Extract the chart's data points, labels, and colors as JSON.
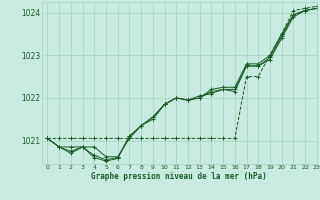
{
  "title": "Graphe pression niveau de la mer (hPa)",
  "background_color": "#c8eae0",
  "grid_color": "#a8cfc0",
  "line_color": "#1a5c28",
  "xlim": [
    -0.5,
    23
  ],
  "ylim": [
    1020.45,
    1024.25
  ],
  "yticks": [
    1021,
    1022,
    1023,
    1024
  ],
  "xticks": [
    0,
    1,
    2,
    3,
    4,
    5,
    6,
    7,
    8,
    9,
    10,
    11,
    12,
    13,
    14,
    15,
    16,
    17,
    18,
    19,
    20,
    21,
    22,
    23
  ],
  "series": [
    {
      "data": [
        1021.05,
        1021.05,
        1021.05,
        1021.05,
        1021.05,
        1021.05,
        1021.05,
        1021.05,
        1021.05,
        1021.05,
        1021.05,
        1021.05,
        1021.05,
        1021.05,
        1021.05,
        1021.05,
        1021.05,
        1022.5,
        1022.5,
        1023.0,
        1023.5,
        1024.05,
        1024.1,
        1024.15
      ],
      "style": "--"
    },
    {
      "data": [
        1021.05,
        1020.85,
        1020.85,
        1020.85,
        1020.85,
        1020.62,
        1020.62,
        1021.05,
        1021.35,
        1021.55,
        1021.85,
        1022.0,
        1021.95,
        1022.0,
        1022.2,
        1022.25,
        1022.25,
        1022.8,
        1022.8,
        1023.0,
        1023.5,
        1023.95,
        1024.05,
        1024.1
      ],
      "style": "-"
    },
    {
      "data": [
        1021.05,
        1020.85,
        1020.75,
        1020.85,
        1020.65,
        1020.55,
        1020.6,
        1021.1,
        1021.35,
        1021.55,
        1021.85,
        1022.0,
        1021.95,
        1022.0,
        1022.15,
        1022.2,
        1022.2,
        1022.75,
        1022.75,
        1022.95,
        1023.45,
        1023.95,
        1024.05,
        1024.1
      ],
      "style": "-"
    },
    {
      "data": [
        1021.05,
        1020.85,
        1020.7,
        1020.85,
        1020.6,
        1020.52,
        1020.58,
        1021.1,
        1021.35,
        1021.5,
        1021.85,
        1022.0,
        1021.95,
        1022.05,
        1022.1,
        1022.2,
        1022.15,
        1022.75,
        1022.75,
        1022.9,
        1023.4,
        1023.9,
        1024.05,
        1024.1
      ],
      "style": "-"
    }
  ]
}
